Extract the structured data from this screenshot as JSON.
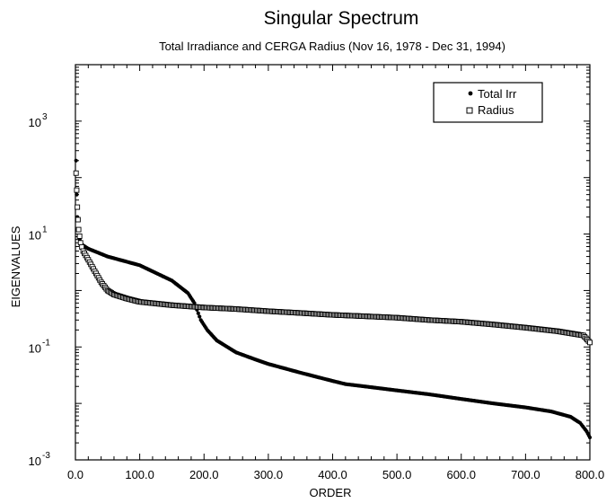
{
  "chart_data": {
    "type": "scatter",
    "title": "Singular Spectrum",
    "subtitle": "Total Irradiance and CERGA Radius (Nov 16, 1978 - Dec 31, 1994)",
    "xlabel": "ORDER",
    "ylabel": "EIGENVALUES",
    "xlim": [
      0,
      800
    ],
    "ylim": [
      0.001,
      10000
    ],
    "yscale": "log",
    "grid": false,
    "legend_position": "top-right",
    "x_ticks": [
      {
        "value": 0,
        "label": "0.0"
      },
      {
        "value": 100,
        "label": "100.0"
      },
      {
        "value": 200,
        "label": "200.0"
      },
      {
        "value": 300,
        "label": "300.0"
      },
      {
        "value": 400,
        "label": "400.0"
      },
      {
        "value": 500,
        "label": "500.0"
      },
      {
        "value": 600,
        "label": "600.0"
      },
      {
        "value": 700,
        "label": "700.0"
      },
      {
        "value": 800,
        "label": "800.0"
      }
    ],
    "y_ticks": [
      {
        "value": 0.001,
        "base": "10",
        "exp": "-3"
      },
      {
        "value": 0.1,
        "base": "10",
        "exp": "-1"
      },
      {
        "value": 10,
        "base": "10",
        "exp": "1"
      },
      {
        "value": 1000,
        "base": "10",
        "exp": "3"
      }
    ],
    "series": [
      {
        "name": "Total Irr",
        "marker": "filled-circle",
        "color": "#000000",
        "points": [
          [
            1,
            200
          ],
          [
            2,
            50
          ],
          [
            3,
            20
          ],
          [
            4,
            12
          ],
          [
            5,
            9
          ],
          [
            10,
            6.5
          ],
          [
            20,
            5.5
          ],
          [
            50,
            4
          ],
          [
            100,
            2.8
          ],
          [
            150,
            1.5
          ],
          [
            175,
            0.9
          ],
          [
            185,
            0.6
          ],
          [
            195,
            0.3
          ],
          [
            205,
            0.2
          ],
          [
            220,
            0.13
          ],
          [
            250,
            0.08
          ],
          [
            280,
            0.06
          ],
          [
            300,
            0.05
          ],
          [
            350,
            0.035
          ],
          [
            400,
            0.025
          ],
          [
            420,
            0.022
          ],
          [
            450,
            0.02
          ],
          [
            500,
            0.017
          ],
          [
            550,
            0.0145
          ],
          [
            600,
            0.012
          ],
          [
            650,
            0.01
          ],
          [
            700,
            0.0085
          ],
          [
            740,
            0.0072
          ],
          [
            770,
            0.0058
          ],
          [
            785,
            0.0045
          ],
          [
            795,
            0.0032
          ],
          [
            800,
            0.0025
          ]
        ]
      },
      {
        "name": "Radius",
        "marker": "open-square",
        "color": "#000000",
        "points": [
          [
            1,
            120
          ],
          [
            2,
            60
          ],
          [
            3,
            30
          ],
          [
            4,
            18
          ],
          [
            5,
            12
          ],
          [
            8,
            7
          ],
          [
            12,
            5
          ],
          [
            20,
            3.5
          ],
          [
            30,
            2.2
          ],
          [
            40,
            1.4
          ],
          [
            50,
            1.0
          ],
          [
            60,
            0.85
          ],
          [
            80,
            0.72
          ],
          [
            100,
            0.63
          ],
          [
            150,
            0.55
          ],
          [
            200,
            0.5
          ],
          [
            250,
            0.47
          ],
          [
            300,
            0.43
          ],
          [
            350,
            0.4
          ],
          [
            400,
            0.37
          ],
          [
            450,
            0.35
          ],
          [
            500,
            0.33
          ],
          [
            550,
            0.3
          ],
          [
            600,
            0.28
          ],
          [
            650,
            0.25
          ],
          [
            700,
            0.22
          ],
          [
            750,
            0.19
          ],
          [
            790,
            0.16
          ],
          [
            800,
            0.12
          ]
        ]
      }
    ]
  }
}
